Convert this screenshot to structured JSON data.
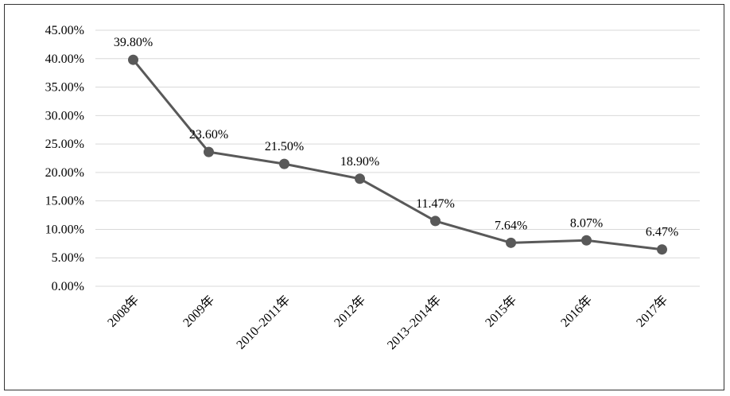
{
  "chart_data": {
    "type": "line",
    "title": "",
    "xlabel": "",
    "ylabel": "",
    "categories": [
      "2008年",
      "2009年",
      "2010–2011年",
      "2012年",
      "2013–2014年",
      "2015年",
      "2016年",
      "2017年"
    ],
    "values": [
      39.8,
      23.6,
      21.5,
      18.9,
      11.47,
      7.64,
      8.07,
      6.47
    ],
    "data_labels": [
      "39.80%",
      "23.60%",
      "21.50%",
      "18.90%",
      "11.47%",
      "7.64%",
      "8.07%",
      "6.47%"
    ],
    "ylim": [
      0,
      45
    ],
    "yticks": [
      "0.00%",
      "5.00%",
      "10.00%",
      "15.00%",
      "20.00%",
      "25.00%",
      "30.00%",
      "35.00%",
      "40.00%",
      "45.00%"
    ],
    "grid": true,
    "legend": "none",
    "colors": {
      "line": "#595959",
      "marker": "#595959",
      "grid": "#d9d9d9"
    }
  }
}
